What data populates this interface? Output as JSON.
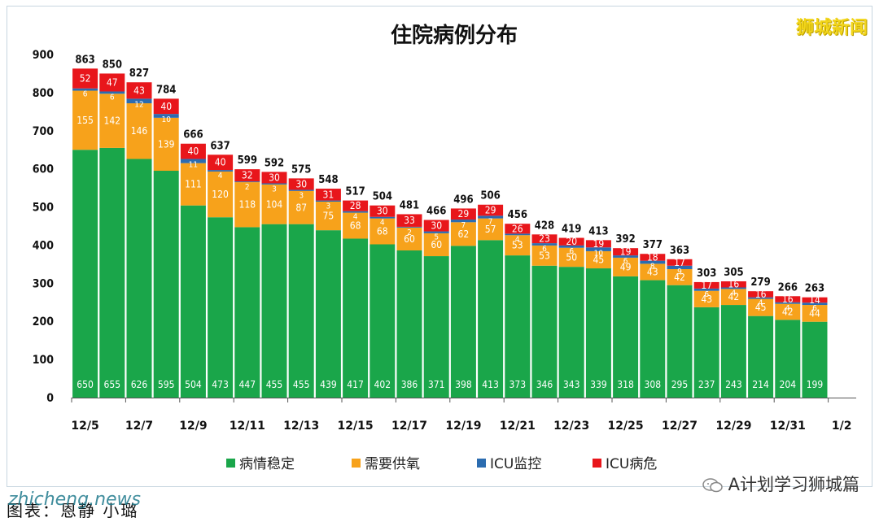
{
  "chart_data": {
    "type": "bar",
    "stacked": true,
    "title": "住院病例分布",
    "ylim": [
      0,
      900
    ],
    "yticks": [
      0,
      100,
      200,
      300,
      400,
      500,
      600,
      700,
      800,
      900
    ],
    "categories": [
      "12/5",
      "12/6",
      "12/7",
      "12/8",
      "12/9",
      "12/10",
      "12/11",
      "12/12",
      "12/13",
      "12/14",
      "12/15",
      "12/16",
      "12/17",
      "12/18",
      "12/19",
      "12/20",
      "12/21",
      "12/22",
      "12/23",
      "12/24",
      "12/25",
      "12/26",
      "12/27",
      "12/28",
      "12/29",
      "12/30",
      "12/31",
      "1/1"
    ],
    "xtick_labels": [
      "12/5",
      "12/7",
      "12/9",
      "12/11",
      "12/13",
      "12/15",
      "12/17",
      "12/19",
      "12/21",
      "12/23",
      "12/25",
      "12/27",
      "12/29",
      "12/31",
      "1/2"
    ],
    "totals": [
      863,
      850,
      827,
      784,
      666,
      637,
      599,
      592,
      575,
      548,
      517,
      504,
      481,
      466,
      496,
      506,
      456,
      428,
      419,
      413,
      392,
      377,
      363,
      303,
      305,
      279,
      266,
      263
    ],
    "series": [
      {
        "name": "病情稳定",
        "color": "#1aa64a",
        "values": [
          650,
          655,
          626,
          595,
          504,
          473,
          447,
          455,
          455,
          439,
          417,
          402,
          386,
          371,
          398,
          413,
          373,
          346,
          343,
          339,
          318,
          308,
          295,
          237,
          243,
          214,
          204,
          199
        ]
      },
      {
        "name": "需要供氧",
        "color": "#f7a21b",
        "values": [
          155,
          142,
          146,
          139,
          111,
          120,
          118,
          104,
          87,
          75,
          68,
          68,
          60,
          60,
          62,
          57,
          53,
          53,
          50,
          45,
          49,
          43,
          42,
          43,
          42,
          45,
          42,
          44
        ]
      },
      {
        "name": "ICU监控",
        "color": "#2b6cb0",
        "values": [
          6,
          6,
          12,
          10,
          11,
          4,
          2,
          3,
          3,
          3,
          4,
          4,
          2,
          5,
          7,
          7,
          4,
          6,
          6,
          10,
          6,
          8,
          9,
          6,
          4,
          4,
          4,
          6
        ]
      },
      {
        "name": "ICU病危",
        "color": "#e8161b",
        "values": [
          52,
          47,
          43,
          40,
          40,
          40,
          32,
          30,
          30,
          31,
          28,
          30,
          33,
          30,
          29,
          29,
          26,
          23,
          20,
          19,
          19,
          18,
          17,
          17,
          16,
          16,
          16,
          14
        ]
      }
    ],
    "legend_position": "bottom",
    "grid": false
  },
  "watermark_top": "狮城新闻",
  "watermark_bottom": "A计划学习狮城篇",
  "footer_caption": "图表：恩静 小璐",
  "footer_overlay": "zhicheng.news"
}
